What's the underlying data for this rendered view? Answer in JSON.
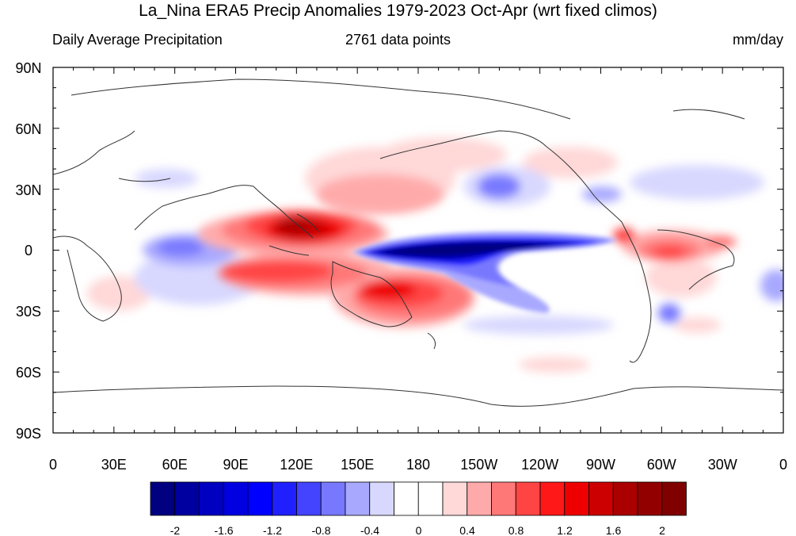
{
  "title": "La_Nina ERA5 Precip Anomalies 1979-2023 Oct-Apr (wrt fixed climos)",
  "subtitle_left": "Daily Average Precipitation",
  "subtitle_center": "2761 data points",
  "subtitle_right": "mm/day",
  "lat_labels": [
    "90N",
    "60N",
    "30N",
    "0",
    "30S",
    "60S",
    "90S"
  ],
  "lon_labels": [
    "0",
    "30E",
    "60E",
    "90E",
    "120E",
    "150E",
    "180",
    "150W",
    "120W",
    "90W",
    "60W",
    "30W",
    "0"
  ],
  "colorbar": {
    "colors": [
      "#000080",
      "#0000a0",
      "#0000c0",
      "#0000e0",
      "#0000ff",
      "#2020ff",
      "#4444ff",
      "#7878ff",
      "#a8a8ff",
      "#d8d8ff",
      "#ffffff",
      "#ffffff",
      "#ffd8d8",
      "#ffaaaa",
      "#ff7878",
      "#ff4444",
      "#ff1818",
      "#ee0000",
      "#cc0000",
      "#aa0000",
      "#930000",
      "#800000"
    ],
    "labels": [
      "-2",
      "-1.6",
      "-1.2",
      "-0.8",
      "-0.4",
      "0",
      "0.4",
      "0.8",
      "1.2",
      "1.6",
      "2"
    ]
  },
  "colors": {
    "frame": "#000000",
    "land_outline": "#333333"
  }
}
